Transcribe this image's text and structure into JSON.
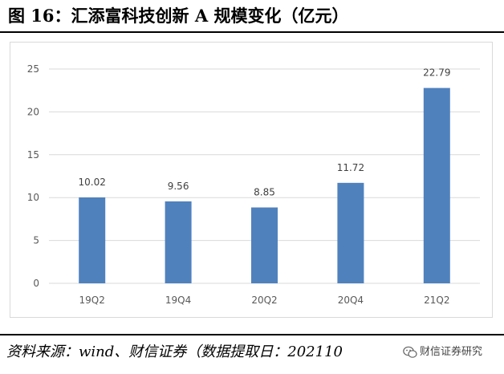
{
  "figure": {
    "title": "图 16：汇添富科技创新 A 规模变化（亿元）"
  },
  "source_note": "资料来源：wind、财信证券（数据提取日：202110",
  "watermark": {
    "text": "财信证券研究",
    "icon": "wechat-icon"
  },
  "colors": {
    "bar": "#4F81BD",
    "grid": "#d9d9d9",
    "axis_text": "#595959",
    "label_text": "#404040"
  },
  "chart_data": {
    "type": "bar",
    "title": "",
    "xlabel": "",
    "ylabel": "",
    "categories": [
      "19Q2",
      "19Q4",
      "20Q2",
      "20Q4",
      "21Q2"
    ],
    "values": [
      10.02,
      9.56,
      8.85,
      11.72,
      22.79
    ],
    "data_labels": [
      "10.02",
      "9.56",
      "8.85",
      "11.72",
      "22.79"
    ],
    "ylim": [
      0,
      25
    ],
    "yticks": [
      "0",
      "5",
      "10",
      "15",
      "20",
      "25"
    ],
    "grid": true,
    "legend": "none"
  }
}
